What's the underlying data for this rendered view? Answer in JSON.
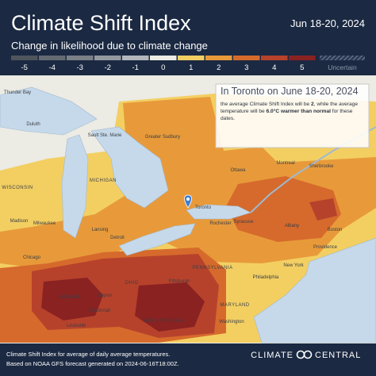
{
  "header": {
    "title": "Climate Shift Index",
    "date": "Jun 18-20, 2024",
    "subtitle": "Change in likelihood due to climate change"
  },
  "legend": {
    "items": [
      {
        "value": -5,
        "color": "#4f555c"
      },
      {
        "value": -4,
        "color": "#646a71"
      },
      {
        "value": -3,
        "color": "#7b8087"
      },
      {
        "value": -2,
        "color": "#9499a0"
      },
      {
        "value": -1,
        "color": "#b3b7bc"
      },
      {
        "value": 0,
        "color": "#ecebe4"
      },
      {
        "value": 1,
        "color": "#f3cf62"
      },
      {
        "value": 2,
        "color": "#e89a3a"
      },
      {
        "value": 3,
        "color": "#d66a2c"
      },
      {
        "value": 4,
        "color": "#b7422c"
      },
      {
        "value": 5,
        "color": "#8a2222"
      }
    ],
    "uncertain": "Uncertain"
  },
  "infobox": {
    "title": "In Toronto on June 18-20, 2024",
    "body": [
      "the average Climate Shift Index will be ",
      "2",
      ", while the average temperature will be ",
      "6.0°C warmer than normal",
      " for these dates."
    ]
  },
  "places": [
    "Thunder Bay",
    "Duluth",
    "Sault Ste. Marie",
    "Greater Sudbury",
    "Ottawa",
    "Montreal",
    "Sherbrooke",
    "WISCONSIN",
    "MICHIGAN",
    "Madison",
    "Milwaukee",
    "Lansing",
    "Detroit",
    "Toronto",
    "Rochester",
    "Syracuse",
    "Albany",
    "Boston",
    "Providence",
    "Chicago",
    "PENNSYLVANIA",
    "Pittsburgh",
    "New York",
    "Philadelphia",
    "INDIANA",
    "OHIO",
    "Dayton",
    "Cincinnati",
    "Louisville",
    "WEST VIRGINIA",
    "MARYLAND",
    "Washington"
  ],
  "footer": {
    "lines": [
      "Climate Shift Index for average of daily average temperatures.",
      "Based on NOAA GFS forecast generated on 2024-06-16T18:00Z."
    ],
    "brand": [
      "CLIMATE",
      "CENTRAL"
    ]
  }
}
